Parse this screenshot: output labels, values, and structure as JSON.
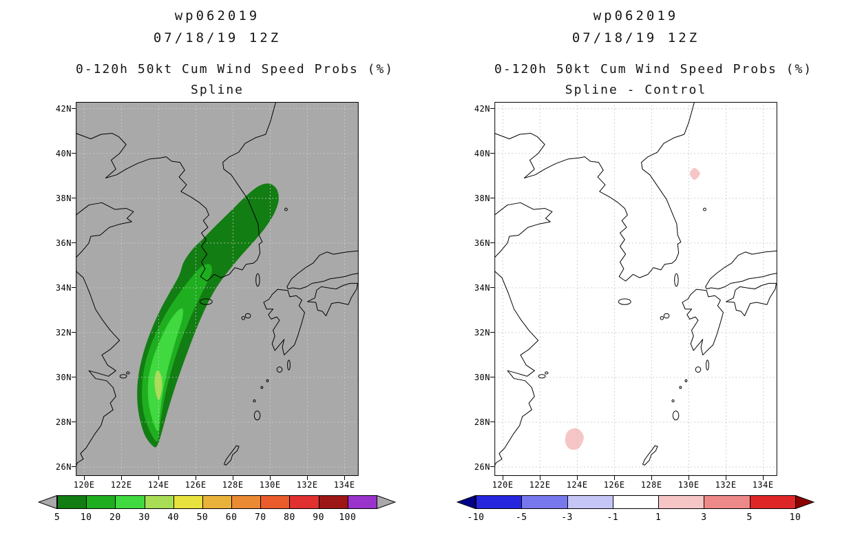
{
  "figure": {
    "product": "Cumulative wind speed probability maps",
    "storm_id": "wp062019",
    "init_time": "07/18/19 12Z"
  },
  "panels": [
    {
      "id": "spline",
      "title_lines": [
        "wp062019",
        "07/18/19 12Z"
      ],
      "subtitle_lines": [
        "0-120h 50kt Cum Wind Speed Probs (%)",
        "Spline"
      ],
      "map_bg": "#a9a9a9",
      "grid_color": "#cfcfcf",
      "lat_ticks": [
        "42N",
        "40N",
        "38N",
        "36N",
        "34N",
        "32N",
        "30N",
        "28N",
        "26N"
      ],
      "lon_ticks": [
        "120E",
        "122E",
        "124E",
        "126E",
        "128E",
        "130E",
        "132E",
        "134E"
      ],
      "colorbar": {
        "tick_labels": [
          "5",
          "10",
          "20",
          "30",
          "40",
          "50",
          "60",
          "70",
          "80",
          "90",
          "100"
        ],
        "segment_colors": [
          "#127d12",
          "#1fae1f",
          "#40d940",
          "#a9dd55",
          "#e8e23e",
          "#e9b23a",
          "#ea8a33",
          "#ea5c2b",
          "#e03030",
          "#9c1616",
          "#9933cc"
        ],
        "arrow_left_color": "#a9a9a9",
        "arrow_right_color": "#a9a9a9"
      }
    },
    {
      "id": "spline-minus-control",
      "title_lines": [
        "wp062019",
        "07/18/19 12Z"
      ],
      "subtitle_lines": [
        "0-120h 50kt Cum Wind Speed Probs (%)",
        "Spline - Control"
      ],
      "map_bg": "#ffffff",
      "grid_color": "#c2c2c2",
      "lat_ticks": [
        "42N",
        "40N",
        "38N",
        "36N",
        "34N",
        "32N",
        "30N",
        "28N",
        "26N"
      ],
      "lon_ticks": [
        "120E",
        "122E",
        "124E",
        "126E",
        "128E",
        "130E",
        "132E",
        "134E"
      ],
      "colorbar": {
        "tick_labels": [
          "-10",
          "-5",
          "-3",
          "-1",
          "1",
          "3",
          "5",
          "10"
        ],
        "segment_colors": [
          "#2626df",
          "#7878ee",
          "#c6c6f6",
          "#ffffff",
          "#f6c6c6",
          "#ee8989",
          "#df2626"
        ],
        "arrow_left_color": "#00008b",
        "arrow_right_color": "#8b0000"
      }
    }
  ],
  "chart_data": [
    {
      "type": "filled-contour-map",
      "title": "wp062019 07/18/19 12Z",
      "subtitle": "0-120h 50kt Cum Wind Speed Probs (%) - Spline",
      "lon_range": [
        119.55,
        134.75
      ],
      "lat_range": [
        25.6,
        42.3
      ],
      "grid_interval_deg": 2,
      "units": "percent",
      "contour_levels": [
        5,
        10,
        20,
        30,
        40,
        50,
        60,
        70,
        80,
        90,
        100
      ],
      "filled_contours": [
        {
          "level": 5,
          "color": "#127d12",
          "polygon_lonlat": [
            [
              123.75,
              26.9
            ],
            [
              123.3,
              27.35
            ],
            [
              123.0,
              28.1
            ],
            [
              122.85,
              29.0
            ],
            [
              122.9,
              30.0
            ],
            [
              123.15,
              31.0
            ],
            [
              123.55,
              32.0
            ],
            [
              124.05,
              32.95
            ],
            [
              124.6,
              33.8
            ],
            [
              125.1,
              34.55
            ],
            [
              125.35,
              35.15
            ],
            [
              125.8,
              35.7
            ],
            [
              126.4,
              36.2
            ],
            [
              127.1,
              36.8
            ],
            [
              127.9,
              37.45
            ],
            [
              128.7,
              38.1
            ],
            [
              129.4,
              38.55
            ],
            [
              129.95,
              38.65
            ],
            [
              130.35,
              38.4
            ],
            [
              130.45,
              37.9
            ],
            [
              130.2,
              37.3
            ],
            [
              129.7,
              36.65
            ],
            [
              129.1,
              36.05
            ],
            [
              128.45,
              35.45
            ],
            [
              127.75,
              34.75
            ],
            [
              127.1,
              34.0
            ],
            [
              126.55,
              33.15
            ],
            [
              126.0,
              32.1
            ],
            [
              125.45,
              30.9
            ],
            [
              124.9,
              29.6
            ],
            [
              124.45,
              28.4
            ],
            [
              124.15,
              27.5
            ],
            [
              123.95,
              27.0
            ]
          ]
        },
        {
          "level": 10,
          "color": "#1fae1f",
          "polygon_lonlat": [
            [
              123.85,
              27.15
            ],
            [
              123.5,
              27.65
            ],
            [
              123.2,
              28.4
            ],
            [
              123.1,
              29.3
            ],
            [
              123.2,
              30.3
            ],
            [
              123.5,
              31.25
            ],
            [
              123.95,
              32.15
            ],
            [
              124.5,
              33.0
            ],
            [
              125.1,
              33.75
            ],
            [
              125.75,
              34.45
            ],
            [
              126.3,
              34.95
            ],
            [
              126.75,
              35.05
            ],
            [
              126.85,
              34.7
            ],
            [
              126.5,
              34.05
            ],
            [
              126.05,
              33.3
            ],
            [
              125.6,
              32.45
            ],
            [
              125.1,
              31.4
            ],
            [
              124.65,
              30.2
            ],
            [
              124.3,
              29.0
            ],
            [
              124.1,
              28.0
            ],
            [
              123.98,
              27.3
            ]
          ]
        },
        {
          "level": 20,
          "color": "#40d940",
          "polygon_lonlat": [
            [
              123.95,
              27.6
            ],
            [
              123.65,
              28.15
            ],
            [
              123.45,
              28.95
            ],
            [
              123.45,
              29.9
            ],
            [
              123.7,
              30.85
            ],
            [
              124.1,
              31.7
            ],
            [
              124.55,
              32.45
            ],
            [
              125.0,
              32.95
            ],
            [
              125.3,
              33.05
            ],
            [
              125.25,
              32.55
            ],
            [
              124.9,
              31.6
            ],
            [
              124.5,
              30.4
            ],
            [
              124.2,
              29.2
            ],
            [
              124.05,
              28.2
            ]
          ]
        },
        {
          "level": 30,
          "color": "#a9dd55",
          "polygon_lonlat": [
            [
              123.98,
              29.0
            ],
            [
              123.82,
              29.4
            ],
            [
              123.78,
              29.9
            ],
            [
              123.9,
              30.3
            ],
            [
              124.1,
              30.15
            ],
            [
              124.2,
              29.65
            ],
            [
              124.1,
              29.15
            ]
          ]
        }
      ]
    },
    {
      "type": "filled-contour-map",
      "title": "wp062019 07/18/19 12Z",
      "subtitle": "0-120h 50kt Cum Wind Speed Probs (%) - Spline - Control",
      "lon_range": [
        119.55,
        134.75
      ],
      "lat_range": [
        25.6,
        42.3
      ],
      "grid_interval_deg": 2,
      "units": "percent difference",
      "contour_levels": [
        -10,
        -5,
        -3,
        -1,
        1,
        3,
        5,
        10
      ],
      "filled_contours": [
        {
          "level": 1,
          "color": "#f6c6c6",
          "polygon_lonlat": [
            [
              130.05,
              39.1
            ],
            [
              130.3,
              39.35
            ],
            [
              130.6,
              39.1
            ],
            [
              130.3,
              38.82
            ]
          ]
        },
        {
          "level": 1,
          "color": "#f6c6c6",
          "polygon_lonlat": [
            [
              123.35,
              27.15
            ],
            [
              123.5,
              27.6
            ],
            [
              124.0,
              27.72
            ],
            [
              124.35,
              27.35
            ],
            [
              124.1,
              26.85
            ],
            [
              123.6,
              26.8
            ]
          ]
        }
      ]
    }
  ]
}
